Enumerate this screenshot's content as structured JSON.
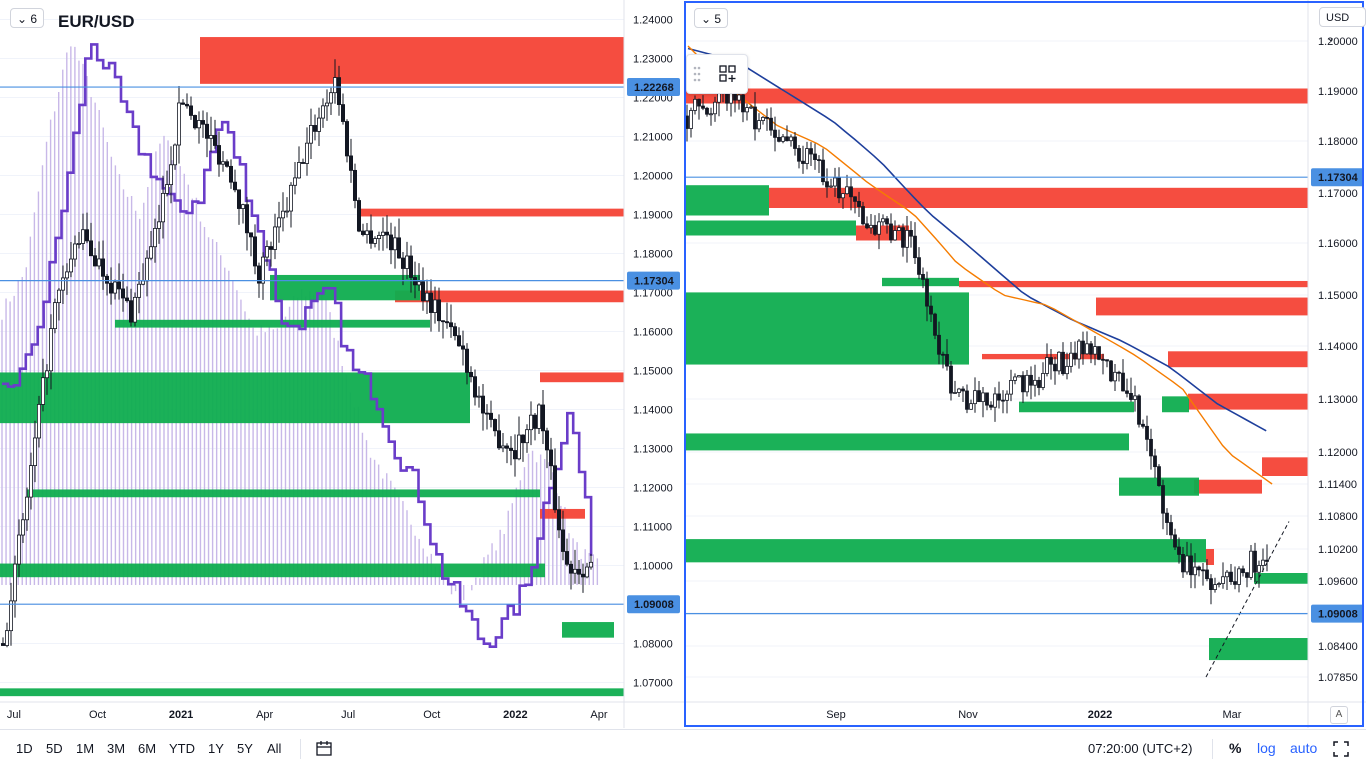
{
  "left_chart": {
    "collapse_label": "6",
    "title": "EUR/USD",
    "price_ticks": [
      1.24,
      1.23,
      1.22,
      1.21,
      1.2,
      1.19,
      1.18,
      1.17,
      1.16,
      1.15,
      1.14,
      1.13,
      1.12,
      1.11,
      1.1,
      1.09,
      1.08,
      1.07
    ],
    "time_labels": [
      {
        "label": "Jul",
        "t": 0.0
      },
      {
        "label": "Oct",
        "t": 3.0
      },
      {
        "label": "2021",
        "t": 6.0,
        "bold": true
      },
      {
        "label": "Apr",
        "t": 9.0
      },
      {
        "label": "Jul",
        "t": 12.0
      },
      {
        "label": "Oct",
        "t": 15.0
      },
      {
        "label": "2022",
        "t": 18.0,
        "bold": true
      },
      {
        "label": "Apr",
        "t": 21.0
      }
    ],
    "price_lines": [
      {
        "price": 1.22268,
        "label": "1.22268"
      },
      {
        "price": 1.17304,
        "label": "1.17304"
      },
      {
        "price": 1.09008,
        "label": "1.09008"
      }
    ]
  },
  "right_chart": {
    "collapse_label": "5",
    "currency": "USD",
    "price_ticks": [
      1.2,
      1.19,
      1.18,
      1.17,
      1.16,
      1.15,
      1.14,
      1.13,
      1.12,
      1.114,
      1.108,
      1.102,
      1.096,
      1.0902,
      1.084,
      1.0785
    ],
    "price_tick_labels": [
      "1.20000",
      "1.19000",
      "1.18000",
      "1.17000",
      "1.16000",
      "1.15000",
      "1.14000",
      "1.13000",
      "1.12000",
      "1.11400",
      "1.10800",
      "1.10200",
      "1.09600",
      "1.09000",
      "1.08400",
      "1.07850"
    ],
    "time_labels": [
      {
        "label": "Sep",
        "t": 2.0
      },
      {
        "label": "Nov",
        "t": 4.0
      },
      {
        "label": "2022",
        "t": 6.0,
        "bold": true
      },
      {
        "label": "Mar",
        "t": 8.0
      }
    ],
    "price_lines": [
      {
        "price": 1.17304,
        "label": "1.17304"
      },
      {
        "price": 1.09008,
        "label": "1.09008"
      }
    ],
    "auto_scale_label": "A"
  },
  "bottom_bar": {
    "ranges": [
      "1D",
      "5D",
      "1M",
      "3M",
      "6M",
      "YTD",
      "1Y",
      "5Y",
      "All"
    ],
    "time": "07:20:00 (UTC+2)",
    "percent": "%",
    "log": "log",
    "auto": "auto"
  },
  "colors": {
    "up": "#26a69a",
    "down": "#ef5350",
    "green_zone": "#0fad4f",
    "red_zone": "#f44336",
    "ma_orange": "#f57c00",
    "ma_blue": "#1e3f9c",
    "purple": "#6a3dc9",
    "accent": "#2962ff"
  },
  "chart_data": [
    {
      "type": "candlestick",
      "title": "EUR/USD",
      "series": [
        {
          "name": "EUR/USD",
          "close": [
            1.08,
            1.12,
            1.165,
            1.185,
            1.175,
            1.165,
            1.185,
            1.22,
            1.21,
            1.2,
            1.175,
            1.19,
            1.21,
            1.225,
            1.185,
            1.185,
            1.175,
            1.165,
            1.155,
            1.135,
            1.13,
            1.14,
            1.1,
            1.1
          ]
        }
      ],
      "ylim": [
        1.065,
        1.245
      ]
    },
    {
      "type": "candlestick",
      "series": [
        {
          "name": "EUR/USD",
          "close": [
            1.185,
            1.19,
            1.18,
            1.175,
            1.165,
            1.16,
            1.13,
            1.13,
            1.135,
            1.14,
            1.13,
            1.1,
            1.095,
            1.102
          ]
        }
      ],
      "ylim": [
        1.074,
        1.205
      ]
    }
  ]
}
